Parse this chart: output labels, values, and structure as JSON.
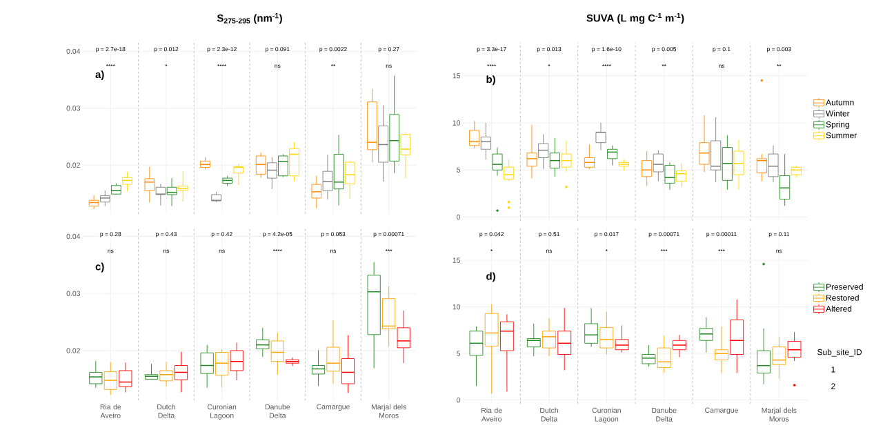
{
  "chart_data": [
    {
      "type": "box",
      "title": "S$_{275-295}$ (nm$^{-1}$)",
      "categories": [
        null,
        null,
        null,
        null,
        null,
        null
      ],
      "ylim": [
        0.0114,
        0.0415
      ],
      "yticks": [
        0.02,
        0.03,
        0.04
      ],
      "grid": true,
      "tick_labels": "y",
      "annotations": [
        "a)",
        "p = 2.7e-18",
        "p = 0.012",
        "p = 2.3e-12",
        "p = 0.091",
        "p = 0.0022",
        "p = 0.27",
        "****",
        "*",
        "****",
        "ns",
        "**",
        "ns"
      ],
      "series": [
        {
          "color": "#ff8c00",
          "boxes": [
            {
              "low": 0.0123,
              "q1": 0.0128,
              "median": 0.0134,
              "q3": 0.0138,
              "high": 0.0147
            },
            {
              "low": 0.0134,
              "q1": 0.0155,
              "median": 0.017,
              "q3": 0.0176,
              "high": 0.0197
            },
            {
              "low": 0.0192,
              "q1": 0.0196,
              "median": 0.0201,
              "q3": 0.0207,
              "high": 0.0214
            },
            {
              "low": 0.0178,
              "q1": 0.0184,
              "median": 0.0201,
              "q3": 0.0216,
              "high": 0.0222
            },
            {
              "low": 0.0124,
              "q1": 0.0142,
              "median": 0.0153,
              "q3": 0.0166,
              "high": 0.0181
            },
            {
              "low": 0.0205,
              "q1": 0.0227,
              "median": 0.024,
              "q3": 0.0311,
              "high": 0.0334
            }
          ]
        },
        {
          "color": "#808080",
          "boxes": [
            {
              "low": 0.0128,
              "q1": 0.0135,
              "median": 0.0142,
              "q3": 0.0146,
              "high": 0.0155
            },
            {
              "low": 0.0129,
              "q1": 0.0148,
              "median": 0.0149,
              "q3": 0.0161,
              "high": 0.0167
            },
            {
              "low": 0.0135,
              "q1": 0.0137,
              "median": 0.0138,
              "q3": 0.0148,
              "high": 0.0153
            },
            {
              "low": 0.0158,
              "q1": 0.0177,
              "median": 0.0191,
              "q3": 0.0204,
              "high": 0.0214
            },
            {
              "low": 0.014,
              "q1": 0.0155,
              "median": 0.0171,
              "q3": 0.0189,
              "high": 0.0218
            },
            {
              "low": 0.0171,
              "q1": 0.0205,
              "median": 0.0236,
              "q3": 0.0269,
              "high": 0.0305
            }
          ]
        },
        {
          "color": "#228b22",
          "boxes": [
            {
              "low": 0.0148,
              "q1": 0.0149,
              "median": 0.0155,
              "q3": 0.0164,
              "high": 0.0168
            },
            {
              "low": 0.0128,
              "q1": 0.0148,
              "median": 0.0152,
              "q3": 0.0161,
              "high": 0.0177
            },
            {
              "low": 0.0163,
              "q1": 0.0168,
              "median": 0.0173,
              "q3": 0.0177,
              "high": 0.0181
            },
            {
              "low": 0.0179,
              "q1": 0.0181,
              "median": 0.0206,
              "q3": 0.0216,
              "high": 0.0219
            },
            {
              "low": 0.0129,
              "q1": 0.0158,
              "median": 0.017,
              "q3": 0.0219,
              "high": 0.0253
            },
            {
              "low": 0.0186,
              "q1": 0.0207,
              "median": 0.0243,
              "q3": 0.0289,
              "high": 0.0357
            }
          ]
        },
        {
          "color": "#ffd700",
          "boxes": [
            {
              "low": 0.0154,
              "q1": 0.0166,
              "median": 0.0173,
              "q3": 0.0178,
              "high": 0.0188
            },
            {
              "low": 0.0136,
              "q1": 0.0156,
              "median": 0.0159,
              "q3": 0.0163,
              "high": 0.0189
            },
            {
              "low": 0.0165,
              "q1": 0.0186,
              "median": 0.0196,
              "q3": 0.0197,
              "high": 0.0202
            },
            {
              "low": 0.0171,
              "q1": 0.0181,
              "median": 0.0219,
              "q3": 0.0229,
              "high": 0.024
            },
            {
              "low": 0.0141,
              "q1": 0.0167,
              "median": 0.0183,
              "q3": 0.0205,
              "high": 0.0207
            },
            {
              "low": 0.0177,
              "q1": 0.0218,
              "median": 0.0228,
              "q3": 0.0254,
              "high": 0.0257
            }
          ]
        }
      ]
    },
    {
      "type": "box",
      "title": "SUVA (L mg C$^{-1}$ m$^{-1}$)",
      "categories": [
        null,
        null,
        null,
        null,
        null,
        null
      ],
      "ylim": [
        -0.4,
        18.5
      ],
      "yticks": [
        0,
        5,
        10,
        15
      ],
      "grid": true,
      "tick_labels": "y",
      "legend": "right",
      "annotations": [
        "b)",
        "p = 3.3e-17",
        "p = 0.013",
        "p = 1.6e-10",
        "p = 0.005",
        "p = 0.1",
        "p = 0.003",
        "****",
        "*",
        "****",
        "**",
        "ns",
        "**"
      ],
      "series": [
        {
          "name": "Autumn",
          "color": "#ff8c00",
          "boxes": [
            {
              "low": 7.3,
              "q1": 7.6,
              "median": 8.0,
              "q3": 9.2,
              "high": 10.2
            },
            {
              "low": 4.1,
              "q1": 5.4,
              "median": 6.2,
              "q3": 6.8,
              "high": 9.8
            },
            {
              "low": 5.1,
              "q1": 5.3,
              "median": 5.8,
              "q3": 6.3,
              "high": 7.7
            },
            {
              "low": 3.3,
              "q1": 4.3,
              "median": 5.0,
              "q3": 6.0,
              "high": 7.0
            },
            {
              "low": 4.8,
              "q1": 5.6,
              "median": 6.8,
              "q3": 7.9,
              "high": 10.8
            },
            {
              "low": 3.8,
              "q1": 4.7,
              "median": 6.0,
              "q3": 6.2,
              "high": 6.7,
              "outliers": [
                14.5
              ]
            }
          ]
        },
        {
          "name": "Winter",
          "color": "#808080",
          "boxes": [
            {
              "low": 6.1,
              "q1": 7.2,
              "median": 8.0,
              "q3": 8.5,
              "high": 10.0
            },
            {
              "low": 5.1,
              "q1": 6.3,
              "median": 7.1,
              "q3": 7.8,
              "high": 8.8
            },
            {
              "low": 7.1,
              "q1": 7.9,
              "median": 9.0,
              "q3": 9.0,
              "high": 10.0
            },
            {
              "low": 3.8,
              "q1": 4.8,
              "median": 5.6,
              "q3": 6.7,
              "high": 7.1
            },
            {
              "low": 3.7,
              "q1": 5.0,
              "median": 5.4,
              "q3": 8.1,
              "high": 10.6
            },
            {
              "low": 3.7,
              "q1": 4.3,
              "median": 5.4,
              "q3": 6.7,
              "high": 7.6
            }
          ]
        },
        {
          "name": "Spring",
          "color": "#228b22",
          "boxes": [
            {
              "low": 4.4,
              "q1": 5.0,
              "median": 5.6,
              "q3": 6.7,
              "high": 7.4,
              "outliers": [
                0.7
              ]
            },
            {
              "low": 4.3,
              "q1": 5.2,
              "median": 6.0,
              "q3": 6.8,
              "high": 8.4
            },
            {
              "low": 5.5,
              "q1": 6.2,
              "median": 6.9,
              "q3": 7.2,
              "high": 7.6
            },
            {
              "low": 2.9,
              "q1": 3.6,
              "median": 4.2,
              "q3": 5.5,
              "high": 5.8
            },
            {
              "low": 2.9,
              "q1": 3.9,
              "median": 5.7,
              "q3": 7.4,
              "high": 8.7
            },
            {
              "low": 1.2,
              "q1": 1.9,
              "median": 3.1,
              "q3": 4.4,
              "high": 6.7
            }
          ]
        },
        {
          "name": "Summer",
          "color": "#ffd700",
          "boxes": [
            {
              "low": 3.8,
              "q1": 4.0,
              "median": 4.5,
              "q3": 5.3,
              "high": 6.1,
              "outliers": [
                1.6,
                1.0
              ]
            },
            {
              "low": 4.8,
              "q1": 5.3,
              "median": 6.0,
              "q3": 6.7,
              "high": 8.1,
              "outliers": [
                3.2
              ]
            },
            {
              "low": 4.9,
              "q1": 5.4,
              "median": 5.6,
              "q3": 5.8,
              "high": 6.1
            },
            {
              "low": 3.2,
              "q1": 3.8,
              "median": 4.6,
              "q3": 4.9,
              "high": 5.7
            },
            {
              "low": 2.9,
              "q1": 4.5,
              "median": 5.7,
              "q3": 7.0,
              "high": 8.2
            },
            {
              "low": 4.2,
              "q1": 4.5,
              "median": 5.0,
              "q3": 5.3,
              "high": 5.5
            }
          ]
        }
      ]
    },
    {
      "type": "box",
      "categories": [
        "Ria de Aveiro",
        "Dutch Delta",
        "Curonian Lagoon",
        "Danube Delta",
        "Camargue",
        "Marjal dels Moros"
      ],
      "ylim": [
        0.0113,
        0.0415
      ],
      "yticks": [
        0.02,
        0.03,
        0.04
      ],
      "grid": true,
      "annotations": [
        "c)",
        "p = 0.28",
        "p = 0.43",
        "p = 0.42",
        "p = 4.2e-05",
        "p = 0.053",
        "p = 0.00071",
        "ns",
        "ns",
        "ns",
        "****",
        "ns",
        "***"
      ],
      "series": [
        {
          "color": "#228b22",
          "boxes": [
            {
              "low": 0.0135,
              "q1": 0.0142,
              "median": 0.0154,
              "q3": 0.0162,
              "high": 0.0182
            },
            {
              "low": 0.0149,
              "q1": 0.015,
              "median": 0.0155,
              "q3": 0.0158,
              "high": 0.0177
            },
            {
              "low": 0.0135,
              "q1": 0.016,
              "median": 0.0174,
              "q3": 0.0196,
              "high": 0.021
            },
            {
              "low": 0.0189,
              "q1": 0.0203,
              "median": 0.021,
              "q3": 0.0219,
              "high": 0.024
            },
            {
              "low": 0.0138,
              "q1": 0.0159,
              "median": 0.0168,
              "q3": 0.0174,
              "high": 0.0201
            },
            {
              "low": 0.0169,
              "q1": 0.0228,
              "median": 0.0303,
              "q3": 0.0332,
              "high": 0.0355
            }
          ]
        },
        {
          "color": "#ffa500",
          "boxes": [
            {
              "low": 0.0123,
              "q1": 0.0132,
              "median": 0.0148,
              "q3": 0.0163,
              "high": 0.018
            },
            {
              "low": 0.0137,
              "q1": 0.0147,
              "median": 0.0158,
              "q3": 0.0165,
              "high": 0.018
            },
            {
              "low": 0.0136,
              "q1": 0.0157,
              "median": 0.0178,
              "q3": 0.0197,
              "high": 0.0202
            },
            {
              "low": 0.0158,
              "q1": 0.0181,
              "median": 0.0197,
              "q3": 0.0217,
              "high": 0.0231
            },
            {
              "low": 0.0142,
              "q1": 0.0164,
              "median": 0.0178,
              "q3": 0.0206,
              "high": 0.0253
            },
            {
              "low": 0.0207,
              "q1": 0.0238,
              "median": 0.0243,
              "q3": 0.0291,
              "high": 0.0313
            }
          ]
        },
        {
          "color": "#ff0000",
          "boxes": [
            {
              "low": 0.0127,
              "q1": 0.0137,
              "median": 0.0145,
              "q3": 0.0165,
              "high": 0.0179
            },
            {
              "low": 0.0127,
              "q1": 0.0149,
              "median": 0.0162,
              "q3": 0.0174,
              "high": 0.0198
            },
            {
              "low": 0.0148,
              "q1": 0.0165,
              "median": 0.0181,
              "q3": 0.02,
              "high": 0.0214
            },
            {
              "low": 0.0173,
              "q1": 0.0178,
              "median": 0.0181,
              "q3": 0.0184,
              "high": 0.0188
            },
            {
              "low": 0.0126,
              "q1": 0.0142,
              "median": 0.0162,
              "q3": 0.0186,
              "high": 0.0227
            },
            {
              "low": 0.0178,
              "q1": 0.0205,
              "median": 0.0217,
              "q3": 0.024,
              "high": 0.027
            }
          ]
        }
      ]
    },
    {
      "type": "box",
      "categories": [
        "Ria de Aveiro",
        "Dutch Delta",
        "Curonian Lagoon",
        "Danube Delta",
        "Camargue",
        "Marjal dels Moros"
      ],
      "ylim": [
        -0.4,
        18.5
      ],
      "yticks": [
        0,
        5,
        10,
        15
      ],
      "grid": true,
      "legend": "right",
      "annotations": [
        "d)",
        "p = 0.042",
        "p = 0.51",
        "p = 0.017",
        "p = 0.00071",
        "p = 0.00011",
        "p = 0.11",
        "*",
        "ns",
        "*",
        "***",
        "***",
        "ns",
        "Sub_site_ID",
        "1",
        "2"
      ],
      "series": [
        {
          "name": "Preserved",
          "color": "#228b22",
          "boxes": [
            {
              "low": 1.5,
              "q1": 4.8,
              "median": 6.1,
              "q3": 7.4,
              "high": 7.9
            },
            {
              "low": 4.7,
              "q1": 5.7,
              "median": 6.4,
              "q3": 6.6,
              "high": 8.2
            },
            {
              "low": 5.7,
              "q1": 6.1,
              "median": 7.0,
              "q3": 8.2,
              "high": 9.9
            },
            {
              "low": 3.6,
              "q1": 3.9,
              "median": 4.5,
              "q3": 4.9,
              "high": 5.9
            },
            {
              "low": 5.1,
              "q1": 6.4,
              "median": 7.1,
              "q3": 7.7,
              "high": 8.9
            },
            {
              "low": 1.7,
              "q1": 2.9,
              "median": 3.7,
              "q3": 5.3,
              "high": 7.7,
              "outliers": [
                14.6
              ]
            }
          ]
        },
        {
          "name": "Restored",
          "color": "#ffa500",
          "boxes": [
            {
              "low": 0.7,
              "q1": 5.8,
              "median": 7.2,
              "q3": 9.3,
              "high": 10.3
            },
            {
              "low": 4.7,
              "q1": 5.6,
              "median": 6.8,
              "q3": 7.4,
              "high": 8.8
            },
            {
              "low": 4.9,
              "q1": 5.6,
              "median": 6.5,
              "q3": 7.8,
              "high": 9.5
            },
            {
              "low": 2.9,
              "q1": 3.5,
              "median": 4.1,
              "q3": 5.6,
              "high": 6.9
            },
            {
              "low": 2.9,
              "q1": 4.3,
              "median": 5.0,
              "q3": 5.4,
              "high": 7.9
            },
            {
              "low": 2.3,
              "q1": 3.8,
              "median": 4.3,
              "q3": 5.7,
              "high": 6.8
            }
          ]
        },
        {
          "name": "Altered",
          "color": "#ff0000",
          "boxes": [
            {
              "low": 0.9,
              "q1": 5.3,
              "median": 7.4,
              "q3": 8.4,
              "high": 9.2
            },
            {
              "low": 3.2,
              "q1": 4.9,
              "median": 6.1,
              "q3": 7.4,
              "high": 9.9
            },
            {
              "low": 5.1,
              "q1": 5.4,
              "median": 5.9,
              "q3": 6.5,
              "high": 8.0
            },
            {
              "low": 4.6,
              "q1": 5.4,
              "median": 5.9,
              "q3": 6.4,
              "high": 7.0
            },
            {
              "low": 2.9,
              "q1": 4.9,
              "median": 6.4,
              "q3": 8.6,
              "high": 10.8
            },
            {
              "low": 4.2,
              "q1": 4.6,
              "median": 5.4,
              "q3": 6.3,
              "high": 7.3,
              "outliers": [
                1.6
              ]
            }
          ]
        }
      ]
    }
  ]
}
